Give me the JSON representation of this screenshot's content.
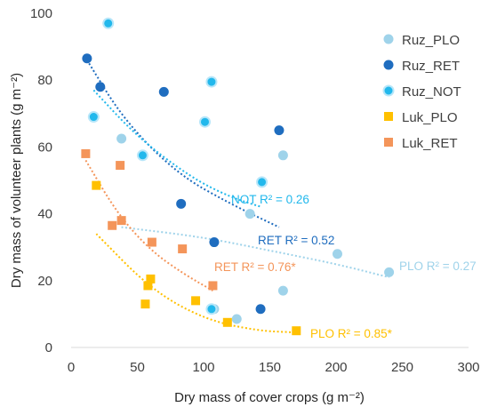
{
  "chart_data": {
    "type": "scatter",
    "xlabel": "Dry mass of cover crops (g m⁻²)",
    "ylabel": "Dry mass of volunteer plants (g m⁻²)",
    "xlim": [
      0,
      300
    ],
    "ylim": [
      0,
      100
    ],
    "x_ticks": [
      "0",
      "50",
      "100",
      "150",
      "200",
      "250",
      "300"
    ],
    "y_ticks": [
      "0",
      "20",
      "40",
      "60",
      "80",
      "100"
    ],
    "grid": false,
    "legend_position": "top-right",
    "series": [
      {
        "name": "Ruz_PLO",
        "color": "#9fd3ea",
        "marker": "circle",
        "points": [
          [
            38,
            62.5
          ],
          [
            108,
            11.5
          ],
          [
            125,
            8.5
          ],
          [
            135,
            40
          ],
          [
            160,
            57.5
          ],
          [
            160,
            17
          ],
          [
            201,
            28
          ],
          [
            240,
            22.5
          ]
        ],
        "fit": {
          "label": "PLO  R² = 0.27",
          "x_range": [
            38,
            240
          ],
          "points": [
            [
              38,
              36
            ],
            [
              100,
              33
            ],
            [
              150,
              29
            ],
            [
              200,
              25
            ],
            [
              240,
              21
            ]
          ]
        }
      },
      {
        "name": "Ruz_RET",
        "color": "#1f6dbf",
        "marker": "circle",
        "points": [
          [
            12,
            86.5
          ],
          [
            22,
            78
          ],
          [
            70,
            76.5
          ],
          [
            83,
            43
          ],
          [
            108,
            31.5
          ],
          [
            143,
            11.5
          ],
          [
            157,
            65
          ]
        ],
        "fit": {
          "label": "RET R² = 0.52",
          "x_range": [
            12,
            157
          ],
          "points": [
            [
              12,
              86
            ],
            [
              40,
              68
            ],
            [
              80,
              52
            ],
            [
              120,
              43
            ],
            [
              157,
              36
            ]
          ]
        }
      },
      {
        "name": "Ruz_NOT",
        "color": "#22b8ec",
        "marker": "circle",
        "points": [
          [
            17,
            69
          ],
          [
            28,
            97
          ],
          [
            54,
            57.5
          ],
          [
            101,
            67.5
          ],
          [
            106,
            11.5
          ],
          [
            106,
            79.5
          ],
          [
            144,
            49.5
          ]
        ],
        "fit": {
          "label": "NOT R² = 0.26",
          "x_range": [
            17,
            144
          ],
          "points": [
            [
              17,
              77
            ],
            [
              50,
              63
            ],
            [
              90,
              51
            ],
            [
              120,
              45
            ],
            [
              144,
              42
            ]
          ]
        }
      },
      {
        "name": "Luk_PLO",
        "color": "#ffc000",
        "marker": "square",
        "points": [
          [
            19,
            48.5
          ],
          [
            56,
            13
          ],
          [
            58,
            18.5
          ],
          [
            60,
            20.5
          ],
          [
            94,
            14
          ],
          [
            118,
            7.5
          ],
          [
            170,
            5
          ]
        ],
        "fit": {
          "label": "PLO R² = 0.85*",
          "x_range": [
            19,
            170
          ],
          "points": [
            [
              19,
              34
            ],
            [
              60,
              17.5
            ],
            [
              100,
              8.5
            ],
            [
              140,
              5
            ],
            [
              170,
              4.5
            ]
          ]
        }
      },
      {
        "name": "Luk_RET",
        "color": "#f4955a",
        "marker": "square",
        "points": [
          [
            11,
            58
          ],
          [
            31,
            36.5
          ],
          [
            37,
            54.5
          ],
          [
            38,
            38
          ],
          [
            61,
            31.5
          ],
          [
            84,
            29.5
          ],
          [
            107,
            18.5
          ]
        ],
        "fit": {
          "label": "RET R² = 0.76*",
          "x_range": [
            11,
            107
          ],
          "points": [
            [
              11,
              56
            ],
            [
              35,
              40
            ],
            [
              60,
              29
            ],
            [
              85,
              22
            ],
            [
              107,
              17
            ]
          ]
        }
      }
    ]
  }
}
